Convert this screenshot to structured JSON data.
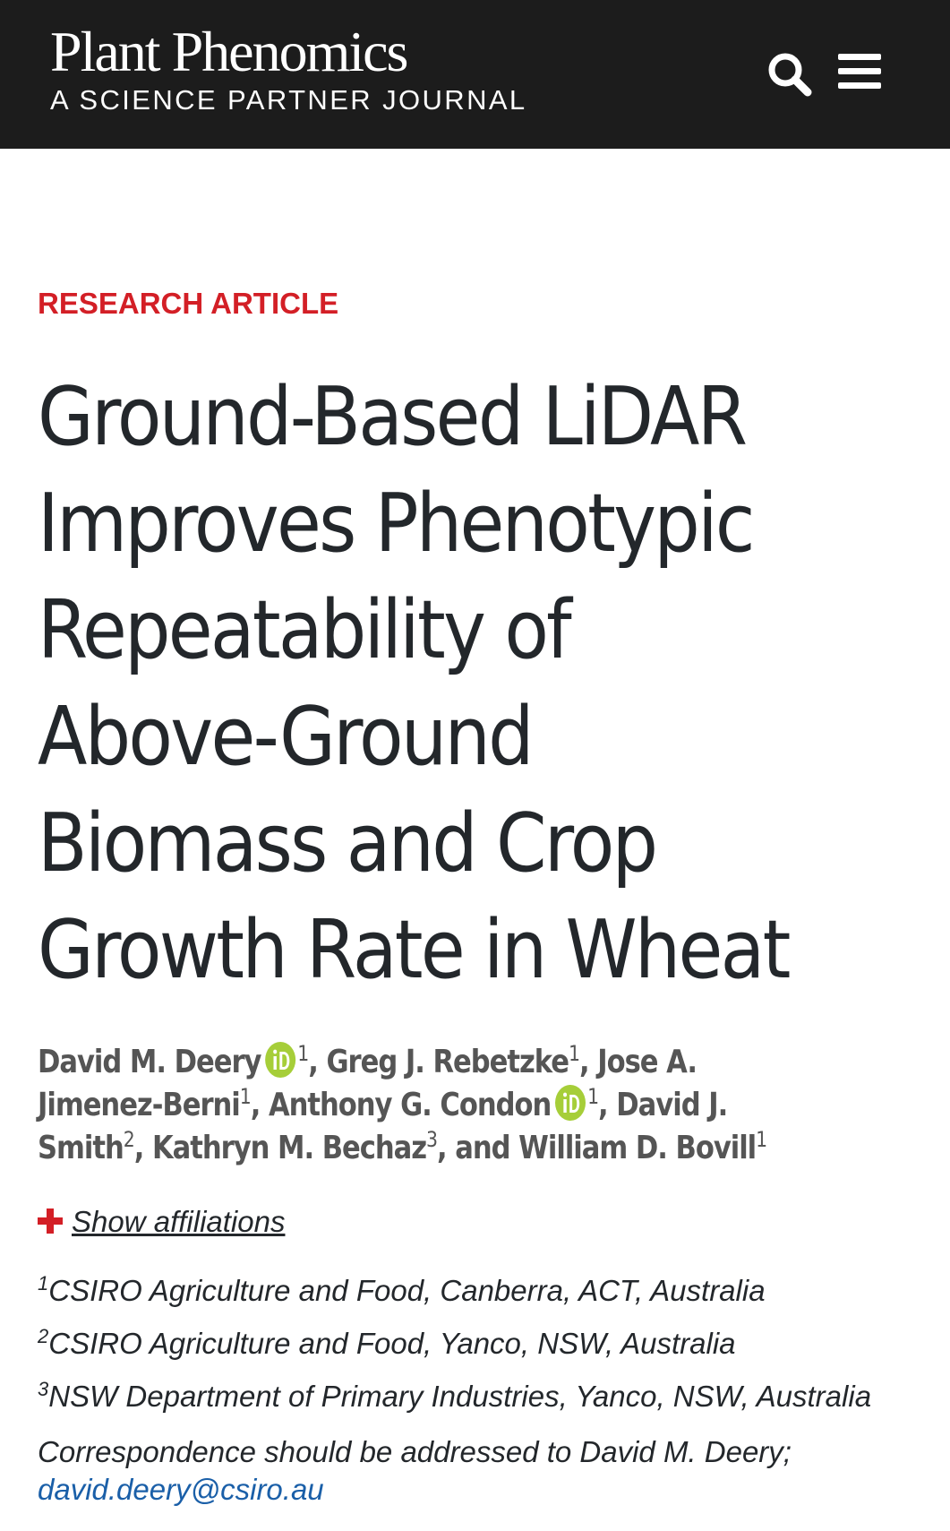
{
  "header": {
    "brand_name": "Plant Phenomics",
    "brand_subtitle": "A SCIENCE PARTNER JOURNAL",
    "search_icon": "search-icon",
    "menu_icon": "hamburger-menu-icon",
    "background_color": "#1c1c1c"
  },
  "article": {
    "category": "RESEARCH ARTICLE",
    "category_color": "#d31f26",
    "title": "Ground-Based LiDAR Improves Phenotypic Repeatability of Above-Ground Biomass and Crop Growth Rate in Wheat",
    "authors": [
      {
        "name": "David M. Deery",
        "orcid": true,
        "aff": "1",
        "sep": ", "
      },
      {
        "name": "Greg J. Rebetzke",
        "orcid": false,
        "aff": "1",
        "sep": ", "
      },
      {
        "name": "Jose A. Jimenez-Berni",
        "orcid": false,
        "aff": "1",
        "sep": ", "
      },
      {
        "name": "Anthony G. Condon",
        "orcid": true,
        "aff": "1",
        "sep": ", "
      },
      {
        "name": "David J. Smith",
        "orcid": false,
        "aff": "2",
        "sep": ", "
      },
      {
        "name": "Kathryn M. Bechaz",
        "orcid": false,
        "aff": "3",
        "sep": ", and "
      },
      {
        "name": "William D. Bovill",
        "orcid": false,
        "aff": "1",
        "sep": ""
      }
    ],
    "orcid_color": "#a6ce39",
    "show_affiliations_label": "Show affiliations",
    "affiliations": [
      {
        "num": "1",
        "text": "CSIRO Agriculture and Food, Canberra, ACT, Australia"
      },
      {
        "num": "2",
        "text": "CSIRO Agriculture and Food, Yanco, NSW, Australia"
      },
      {
        "num": "3",
        "text": "NSW Department of Primary Industries, Yanco, NSW, Australia"
      }
    ],
    "correspondence_text": "Correspondence should be addressed to David M. Deery;",
    "correspondence_email": "david.deery@csiro.au",
    "link_color": "#1a5fa8"
  }
}
